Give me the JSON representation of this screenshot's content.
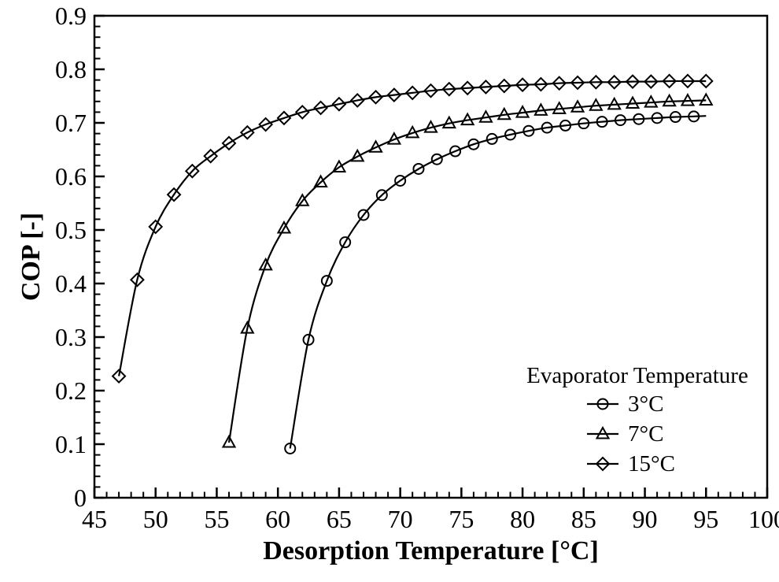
{
  "figure": {
    "background_color": "#ffffff",
    "line_color": "#000000"
  },
  "chart_data": {
    "type": "line",
    "title": "",
    "xlabel": "Desorption Temperature [°C]",
    "ylabel": "COP [-]",
    "xlim": [
      45,
      100
    ],
    "ylim": [
      0,
      0.9
    ],
    "grid": false,
    "x_major_ticks": [
      45,
      50,
      55,
      60,
      65,
      70,
      75,
      80,
      85,
      90,
      95,
      100
    ],
    "x_tick_labels": [
      "45",
      "50",
      "55",
      "60",
      "65",
      "70",
      "75",
      "80",
      "85",
      "90",
      "95",
      "100"
    ],
    "x_minor_step": 1,
    "y_major_ticks": [
      0,
      0.1,
      0.2,
      0.3,
      0.4,
      0.5,
      0.6,
      0.7,
      0.8,
      0.9
    ],
    "y_tick_labels": [
      "0",
      "0.1",
      "0.2",
      "0.3",
      "0.4",
      "0.5",
      "0.6",
      "0.7",
      "0.8",
      "0.9"
    ],
    "y_minor_step": 0.02,
    "legend": {
      "title": "Evaporator Temperature",
      "position": "inside-lower-right"
    },
    "series": [
      {
        "name": "3°C",
        "marker": "circle",
        "color": "#000000",
        "x": [
          61,
          62.5,
          64,
          65.5,
          67,
          68.5,
          70,
          71.5,
          73,
          74.5,
          76,
          77.5,
          79,
          80.5,
          82,
          83.5,
          85,
          86.5,
          88,
          89.5,
          91,
          92.5,
          94
        ],
        "y": [
          0.092,
          0.295,
          0.405,
          0.477,
          0.528,
          0.565,
          0.592,
          0.614,
          0.632,
          0.647,
          0.66,
          0.67,
          0.678,
          0.685,
          0.691,
          0.695,
          0.699,
          0.702,
          0.705,
          0.707,
          0.709,
          0.711,
          0.712
        ],
        "line_end": {
          "x": 95,
          "y": 0.713
        }
      },
      {
        "name": "7°C",
        "marker": "triangle",
        "color": "#000000",
        "x": [
          56,
          57.5,
          59,
          60.5,
          62,
          63.5,
          65,
          66.5,
          68,
          69.5,
          71,
          72.5,
          74,
          75.5,
          77,
          78.5,
          80,
          81.5,
          83,
          84.5,
          86,
          87.5,
          89,
          90.5,
          92,
          93.5,
          95
        ],
        "y": [
          0.103,
          0.316,
          0.434,
          0.503,
          0.554,
          0.589,
          0.617,
          0.637,
          0.654,
          0.669,
          0.681,
          0.691,
          0.699,
          0.705,
          0.71,
          0.715,
          0.719,
          0.723,
          0.726,
          0.729,
          0.732,
          0.734,
          0.736,
          0.738,
          0.74,
          0.741,
          0.742
        ]
      },
      {
        "name": "15°C",
        "marker": "diamond",
        "color": "#000000",
        "x": [
          47,
          48.5,
          50,
          51.5,
          53,
          54.5,
          56,
          57.5,
          59,
          60.5,
          62,
          63.5,
          65,
          66.5,
          68,
          69.5,
          71,
          72.5,
          74,
          75.5,
          77,
          78.5,
          80,
          81.5,
          83,
          84.5,
          86,
          87.5,
          89,
          90.5,
          92,
          93.5,
          95
        ],
        "y": [
          0.227,
          0.407,
          0.506,
          0.566,
          0.61,
          0.638,
          0.662,
          0.682,
          0.697,
          0.709,
          0.72,
          0.728,
          0.735,
          0.742,
          0.748,
          0.752,
          0.756,
          0.76,
          0.763,
          0.765,
          0.767,
          0.769,
          0.771,
          0.772,
          0.774,
          0.775,
          0.776,
          0.776,
          0.777,
          0.777,
          0.778,
          0.778,
          0.778
        ]
      }
    ]
  }
}
